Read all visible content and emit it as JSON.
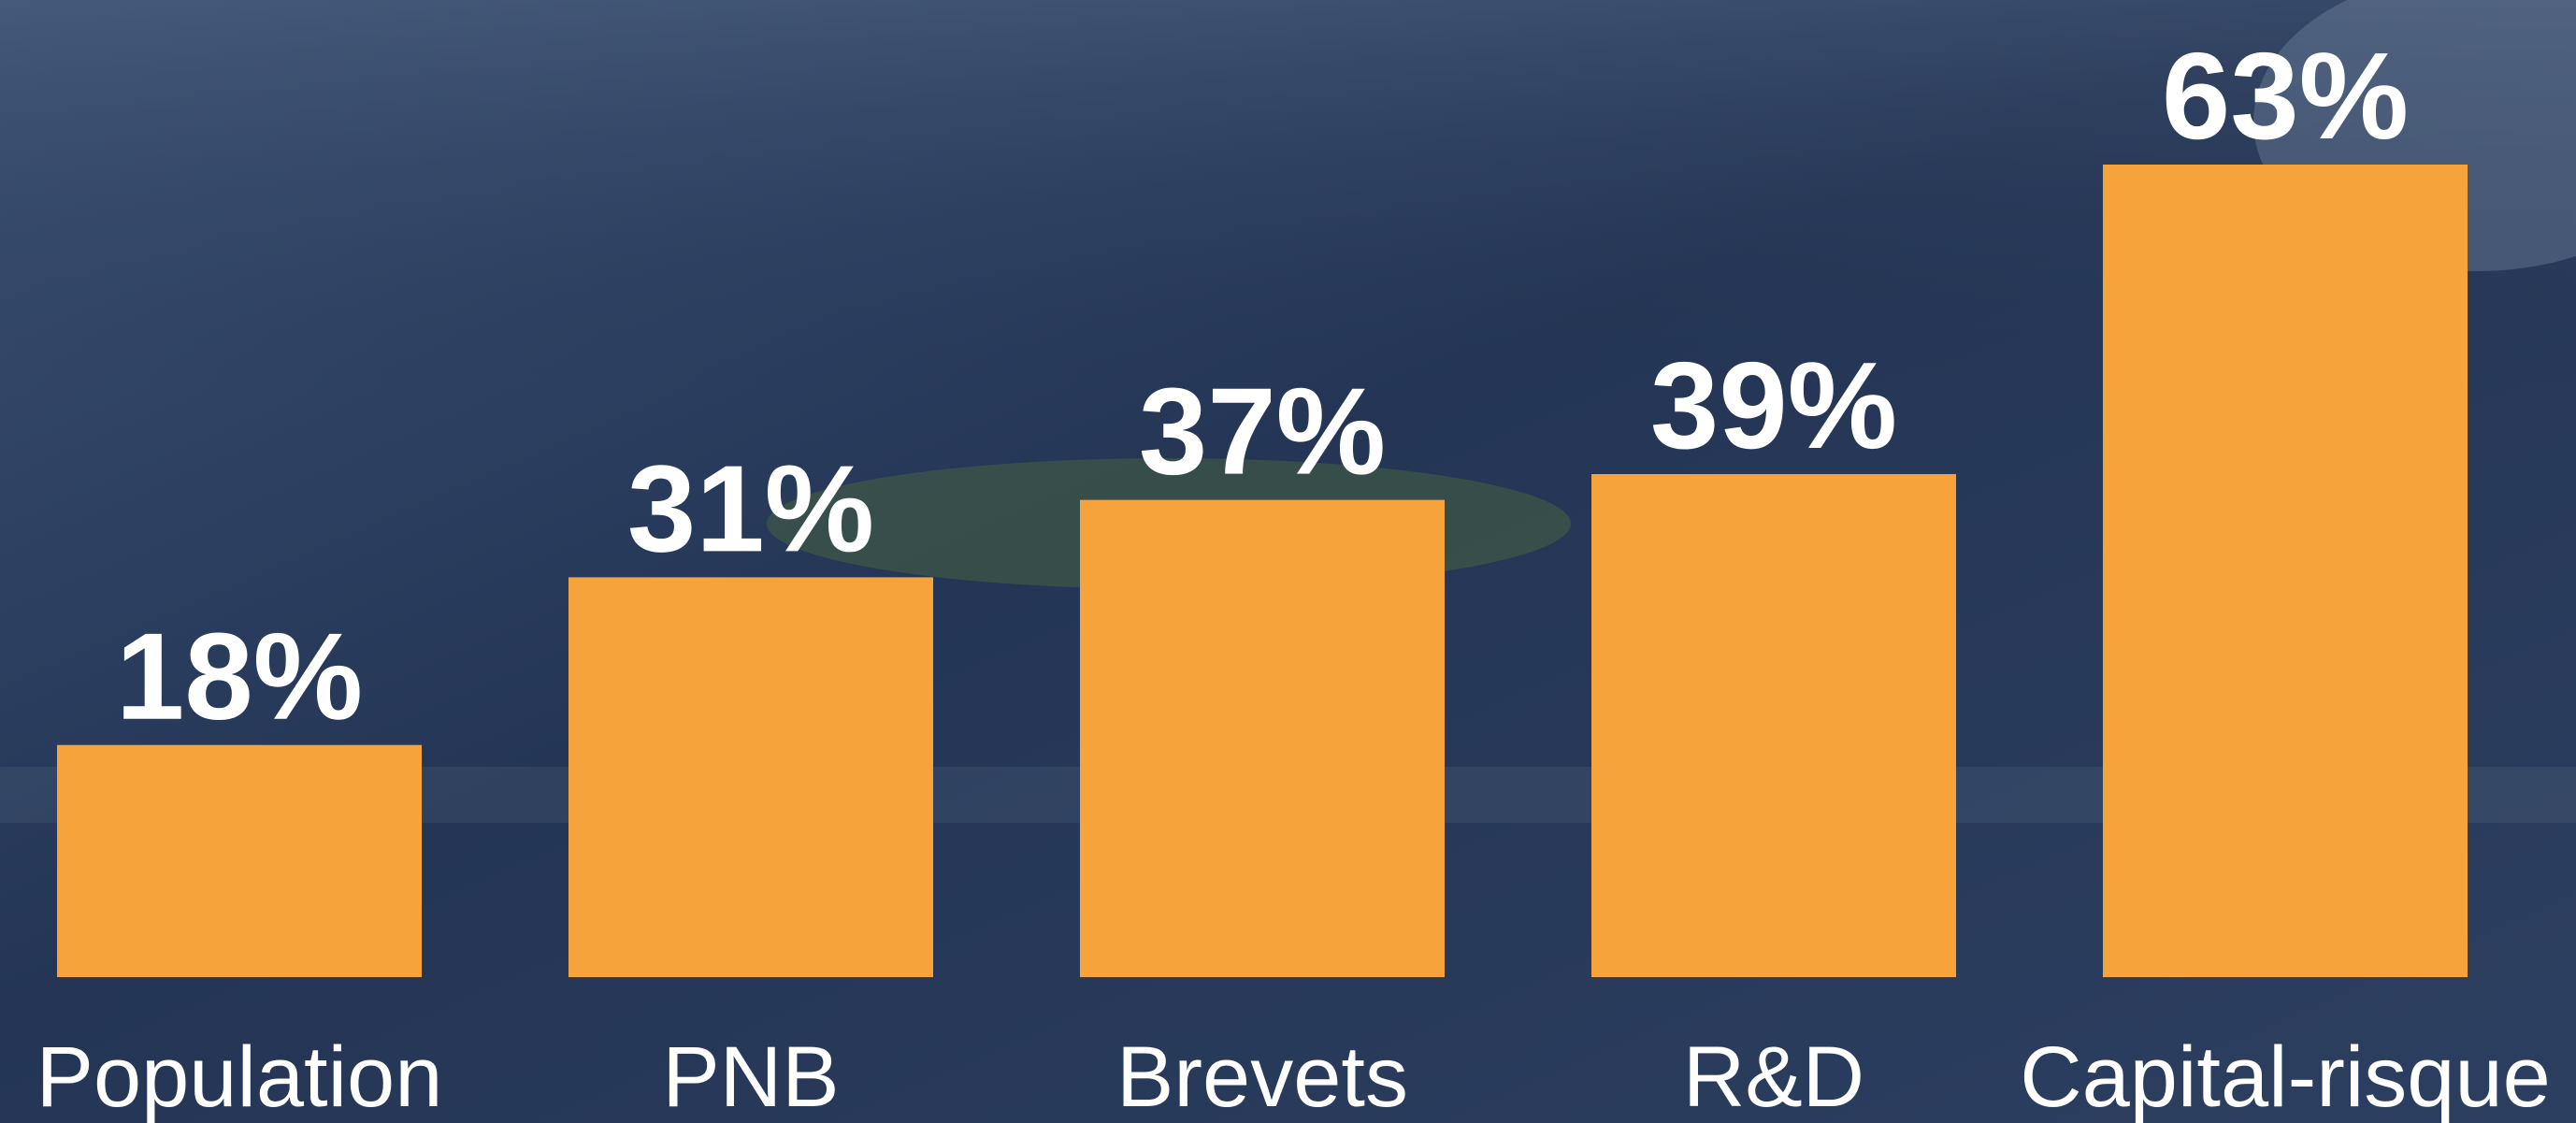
{
  "chart_data": {
    "type": "bar",
    "categories": [
      "Population",
      "PNB",
      "Brevets",
      "R&D",
      "Capital-risque"
    ],
    "values": [
      18,
      31,
      37,
      39,
      63
    ],
    "value_labels": [
      "18%",
      "31%",
      "37%",
      "39%",
      "63%"
    ],
    "color": "#f5a33a"
  }
}
